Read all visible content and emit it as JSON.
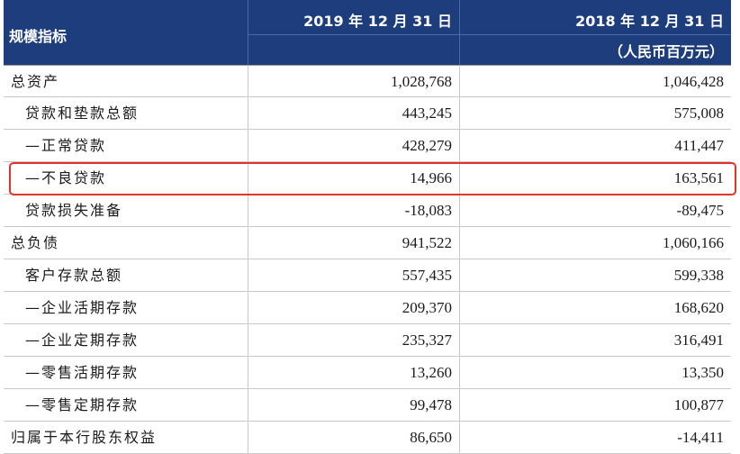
{
  "header": {
    "label": "规模指标",
    "col_2019": "2019 年 12 月 31 日",
    "col_2018": "2018 年 12 月 31 日",
    "unit": "（人民币百万元）"
  },
  "rows": [
    {
      "label": "总资产",
      "v2019": "1,028,768",
      "v2018": "1,046,428",
      "level": 0
    },
    {
      "label": "贷款和垫款总额",
      "v2019": "443,245",
      "v2018": "575,008",
      "level": 1
    },
    {
      "label": "—正常贷款",
      "v2019": "428,279",
      "v2018": "411,447",
      "level": 1
    },
    {
      "label": "—不良贷款",
      "v2019": "14,966",
      "v2018": "163,561",
      "level": 1
    },
    {
      "label": "贷款损失准备",
      "v2019": "-18,083",
      "v2018": "-89,475",
      "level": 1
    },
    {
      "label": "总负债",
      "v2019": "941,522",
      "v2018": "1,060,166",
      "level": 0
    },
    {
      "label": "客户存款总额",
      "v2019": "557,435",
      "v2018": "599,338",
      "level": 1
    },
    {
      "label": "—企业活期存款",
      "v2019": "209,370",
      "v2018": "168,620",
      "level": 1
    },
    {
      "label": "—企业定期存款",
      "v2019": "235,327",
      "v2018": "316,491",
      "level": 1
    },
    {
      "label": "—零售活期存款",
      "v2019": "13,260",
      "v2018": "13,350",
      "level": 1
    },
    {
      "label": "—零售定期存款",
      "v2019": "99,478",
      "v2018": "100,877",
      "level": 1
    },
    {
      "label": "归属于本行股东权益",
      "v2019": "86,650",
      "v2018": "-14,411",
      "level": 0
    }
  ]
}
